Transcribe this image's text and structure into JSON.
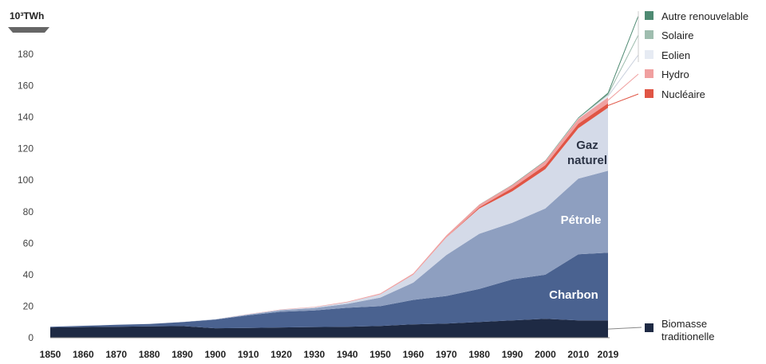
{
  "chart_data": {
    "type": "area",
    "unit_label": "10³TWh",
    "x": [
      1850,
      1860,
      1870,
      1880,
      1890,
      1900,
      1910,
      1920,
      1930,
      1940,
      1950,
      1960,
      1970,
      1980,
      1990,
      2000,
      2010,
      2019
    ],
    "x_tick_labels": [
      "1850",
      "1860",
      "1870",
      "1880",
      "1890",
      "1900",
      "1910",
      "1920",
      "1930",
      "1940",
      "1950",
      "1960",
      "1970",
      "1980",
      "1990",
      "2000",
      "2010",
      "2019"
    ],
    "ylim": [
      0,
      180
    ],
    "y_ticks": [
      0,
      20,
      40,
      60,
      80,
      100,
      120,
      140,
      160,
      180
    ],
    "stacked": true,
    "series": [
      {
        "name": "Biomasse traditionelle",
        "color": "#1e2a44",
        "values": [
          6.5,
          6.8,
          7.0,
          7.2,
          7.4,
          6.0,
          6.2,
          6.5,
          6.8,
          7.0,
          7.5,
          8.5,
          9.0,
          10.0,
          11.0,
          12.0,
          11.0,
          11.0
        ]
      },
      {
        "name": "Charbon",
        "color": "#4a6290",
        "values": [
          0.5,
          0.8,
          1.2,
          1.5,
          2.5,
          5.5,
          8.0,
          10.0,
          10.5,
          12.0,
          12.5,
          15.5,
          17.5,
          21.0,
          26.0,
          28.0,
          42.0,
          43.0
        ]
      },
      {
        "name": "Pétrole",
        "color": "#8e9fc0",
        "values": [
          0,
          0,
          0,
          0,
          0.1,
          0.2,
          0.5,
          1.0,
          1.5,
          2.5,
          5.5,
          11.0,
          26.0,
          35.0,
          36.0,
          42.0,
          48.0,
          52.0
        ]
      },
      {
        "name": "Gaz naturel",
        "color": "#d4dae8",
        "values": [
          0,
          0,
          0,
          0,
          0,
          0.1,
          0.2,
          0.3,
          0.5,
          1.0,
          2.0,
          5.0,
          11.0,
          16.0,
          20.0,
          25.0,
          32.0,
          40.0
        ]
      },
      {
        "name": "Nucléaire",
        "color": "#e05545",
        "values": [
          0,
          0,
          0,
          0,
          0,
          0,
          0,
          0,
          0,
          0,
          0,
          0,
          0.1,
          0.8,
          2.0,
          2.5,
          2.8,
          2.8
        ]
      },
      {
        "name": "Hydro",
        "color": "#f0a0a0",
        "values": [
          0,
          0,
          0,
          0,
          0,
          0,
          0.1,
          0.2,
          0.3,
          0.4,
          0.6,
          0.9,
          1.3,
          1.7,
          2.0,
          2.6,
          3.1,
          3.8
        ]
      },
      {
        "name": "Eolien",
        "color": "#e6ebf3",
        "values": [
          0,
          0,
          0,
          0,
          0,
          0,
          0,
          0,
          0,
          0,
          0,
          0,
          0,
          0,
          0,
          0.1,
          0.3,
          1.4
        ]
      },
      {
        "name": "Solaire",
        "color": "#9fbdaf",
        "values": [
          0,
          0,
          0,
          0,
          0,
          0,
          0,
          0,
          0,
          0,
          0,
          0,
          0,
          0,
          0,
          0,
          0.1,
          0.7
        ]
      },
      {
        "name": "Autre renouvelable",
        "color": "#4e8a72",
        "values": [
          0,
          0,
          0,
          0,
          0,
          0,
          0,
          0,
          0,
          0,
          0,
          0,
          0,
          0.1,
          0.2,
          0.3,
          0.5,
          0.9
        ]
      }
    ],
    "inline_labels": {
      "gaz": [
        "Gaz",
        "naturel"
      ],
      "petrole": "Pétrole",
      "charbon": "Charbon"
    },
    "legend": [
      {
        "label": "Autre renouvelable",
        "color": "#4e8a72"
      },
      {
        "label": "Solaire",
        "color": "#9fbdaf"
      },
      {
        "label": "Eolien",
        "color": "#e6ebf3"
      },
      {
        "label": "Hydro",
        "color": "#f0a0a0"
      },
      {
        "label": "Nucléaire",
        "color": "#e05545"
      }
    ],
    "biomasse_label": [
      "Biomasse",
      "traditionelle"
    ],
    "grid": false,
    "legend_position": "right"
  }
}
